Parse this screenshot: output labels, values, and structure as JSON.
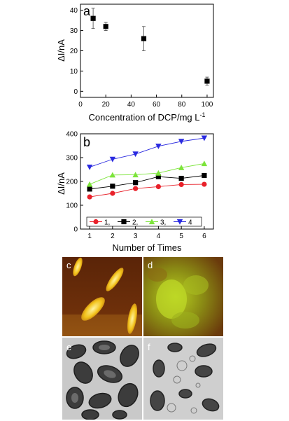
{
  "chart_data": [
    {
      "type": "scatter",
      "panel_label": "a",
      "xlabel": "Concentration of DCP/mg L",
      "xlabel_sup": "-1",
      "ylabel": "ΔI/nA",
      "xlim": [
        0,
        105
      ],
      "ylim": [
        -3,
        43
      ],
      "xticks": [
        0,
        20,
        40,
        60,
        80,
        100
      ],
      "yticks": [
        0,
        10,
        20,
        30,
        40
      ],
      "marker": "square",
      "color": "#000000",
      "x": [
        10,
        20,
        50,
        100
      ],
      "y": [
        36,
        32,
        26,
        5
      ],
      "error": [
        5,
        2,
        6,
        2
      ]
    },
    {
      "type": "line",
      "panel_label": "b",
      "xlabel": "Number of Times",
      "ylabel": "ΔI/nA",
      "xlim": [
        0.6,
        6.4
      ],
      "ylim": [
        0,
        400
      ],
      "xticks": [
        1,
        2,
        3,
        4,
        5,
        6
      ],
      "yticks": [
        0,
        100,
        200,
        300,
        400
      ],
      "legend_position": "bottom",
      "x": [
        1,
        2,
        3,
        4,
        5,
        6
      ],
      "series": [
        {
          "name": "1",
          "color": "#e8212a",
          "marker": "circle",
          "values": [
            135,
            150,
            170,
            178,
            187,
            188
          ]
        },
        {
          "name": "2",
          "color": "#000000",
          "marker": "square",
          "values": [
            168,
            180,
            195,
            220,
            213,
            225
          ]
        },
        {
          "name": "3",
          "color": "#7ce43a",
          "marker": "triangle-up",
          "values": [
            188,
            227,
            228,
            235,
            258,
            275
          ]
        },
        {
          "name": "4",
          "color": "#2a2ae0",
          "marker": "triangle-down",
          "values": [
            260,
            293,
            315,
            348,
            368,
            382
          ]
        }
      ],
      "legend_text": [
        "1,",
        "2,",
        "3,",
        "4"
      ]
    }
  ],
  "micrographs": [
    {
      "label": "c",
      "kind": "afm-rods"
    },
    {
      "label": "d",
      "kind": "afm-cluster"
    },
    {
      "label": "e",
      "kind": "tem-cells"
    },
    {
      "label": "f",
      "kind": "tem-cells-lysed"
    }
  ]
}
